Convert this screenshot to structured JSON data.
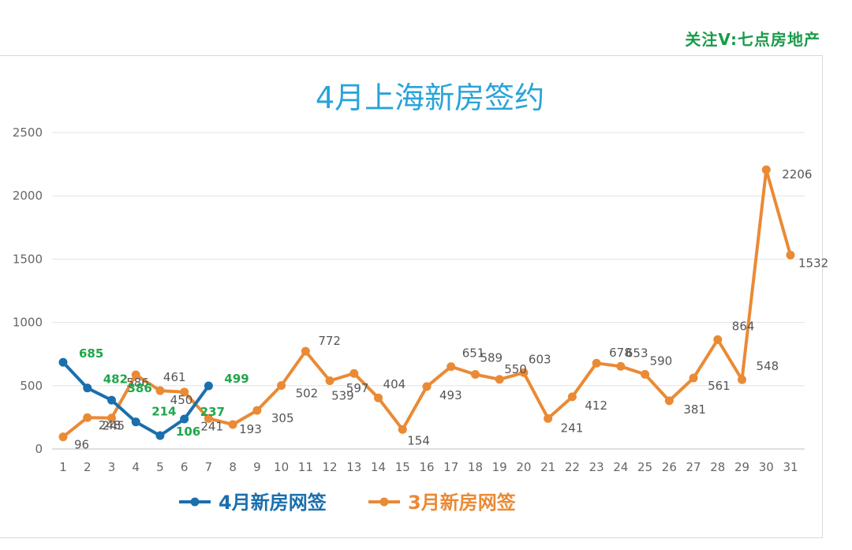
{
  "watermark": "关注V:七点房地产",
  "colors": {
    "april": "#1a6fad",
    "march": "#ea8a35",
    "title": "#29a3d8",
    "watermark": "#1a9b4a",
    "april_label": "#1fa64a"
  },
  "chart_data": {
    "type": "line",
    "title": "4月上海新房签约",
    "xlabel": "",
    "ylabel": "",
    "ylim": [
      0,
      2500
    ],
    "yticks": [
      0,
      500,
      1000,
      1500,
      2000,
      2500
    ],
    "grid": true,
    "legend_position": "bottom",
    "x": [
      1,
      2,
      3,
      4,
      5,
      6,
      7,
      8,
      9,
      10,
      11,
      12,
      13,
      14,
      15,
      16,
      17,
      18,
      19,
      20,
      21,
      22,
      23,
      24,
      25,
      26,
      27,
      28,
      29,
      30,
      31
    ],
    "series": [
      {
        "name": "4月新房网签",
        "color": "#1a6fad",
        "x": [
          1,
          2,
          3,
          4,
          5,
          6,
          7
        ],
        "values": [
          685,
          482,
          386,
          214,
          106,
          237,
          499
        ]
      },
      {
        "name": "3月新房网签",
        "color": "#ea8a35",
        "x": [
          1,
          2,
          3,
          4,
          5,
          6,
          7,
          8,
          9,
          10,
          11,
          12,
          13,
          14,
          15,
          16,
          17,
          18,
          19,
          20,
          21,
          22,
          23,
          24,
          25,
          26,
          27,
          28,
          29,
          30,
          31
        ],
        "values": [
          96,
          248,
          245,
          586,
          461,
          450,
          241,
          193,
          305,
          502,
          772,
          539,
          597,
          404,
          154,
          493,
          651,
          589,
          550,
          603,
          241,
          412,
          678,
          653,
          590,
          381,
          561,
          864,
          548,
          2206,
          1532
        ]
      }
    ]
  }
}
